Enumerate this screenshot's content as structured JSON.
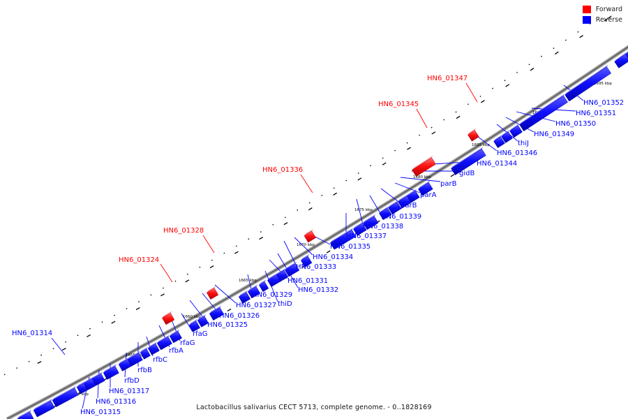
{
  "legend": {
    "forward_label": "Forward",
    "reverse_label": "Reverse",
    "forward_color": "#ff0000",
    "reverse_color": "#0000ff"
  },
  "caption": "Lactobacillus salivarius CECT 5713, complete genome. - 0..1828169",
  "colors": {
    "backbone": "#8c8c8c",
    "tick": "#000000",
    "label_line_forward": "#ff0000",
    "label_line_reverse": "#0000ff"
  },
  "scale_labels": [
    "1650 kbp",
    "1655 kbp",
    "1660 kbp",
    "1665 kbp",
    "1670 kbp",
    "1675 kbp",
    "1680 kbp",
    "1685 kbp",
    "1690 kbp",
    "1695 kbp"
  ],
  "forward_genes": [
    "HN6_01324",
    "HN6_01328",
    "HN6_01336",
    "HN6_01345",
    "HN6_01347"
  ],
  "reverse_genes": [
    "HN6_01314",
    "HN6_01315",
    "HN6_01316",
    "HN6_01317",
    "rfbD",
    "rfbB",
    "rfbC",
    "rfbA",
    "rfaG",
    "rfaG",
    "HN6_01325",
    "HN6_01326",
    "HN6_01327",
    "thiD",
    "HN6_01329",
    "HN6_01332",
    "HN6_01331",
    "HN6_01333",
    "HN6_01334",
    "HN6_01335",
    "HN6_01337",
    "HN6_01338",
    "HN6_01339",
    "parB",
    "parA",
    "parB",
    "gidB",
    "HN6_01344",
    "HN6_01346",
    "thiJ",
    "HN6_01349",
    "HN6_01350",
    "HN6_01351",
    "HN6_01352"
  ]
}
